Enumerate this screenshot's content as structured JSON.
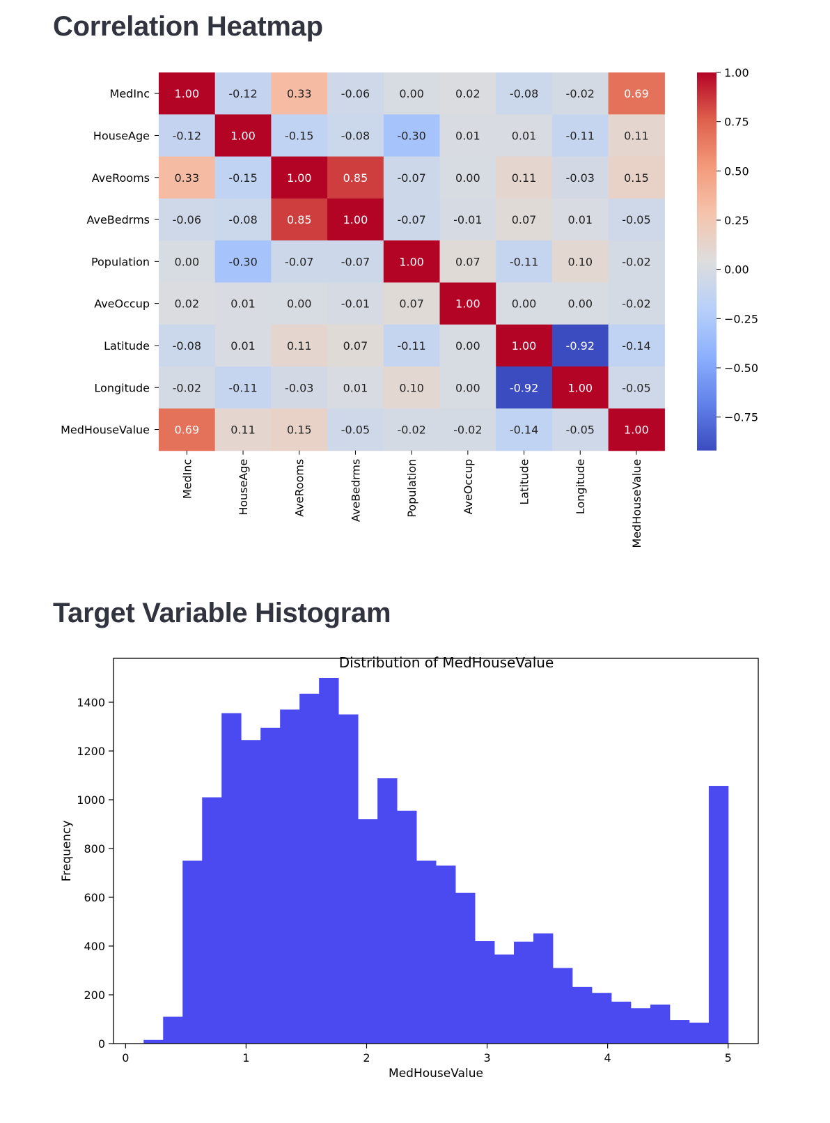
{
  "sections": {
    "heatmap_heading": "Correlation Heatmap",
    "histogram_heading": "Target Variable Histogram"
  },
  "chart_data": [
    {
      "type": "heatmap",
      "colormap": "coolwarm",
      "value_range": [
        -0.92,
        1.0
      ],
      "annotation_format": "2 decimals",
      "labels": [
        "MedInc",
        "HouseAge",
        "AveRooms",
        "AveBedrms",
        "Population",
        "AveOccup",
        "Latitude",
        "Longitude",
        "MedHouseValue"
      ],
      "matrix": [
        [
          1.0,
          -0.12,
          0.33,
          -0.06,
          0.0,
          0.02,
          -0.08,
          -0.02,
          0.69
        ],
        [
          -0.12,
          1.0,
          -0.15,
          -0.08,
          -0.3,
          0.01,
          0.01,
          -0.11,
          0.11
        ],
        [
          0.33,
          -0.15,
          1.0,
          0.85,
          -0.07,
          -0.0,
          0.11,
          -0.03,
          0.15
        ],
        [
          -0.06,
          -0.08,
          0.85,
          1.0,
          -0.07,
          -0.01,
          0.07,
          0.01,
          -0.05
        ],
        [
          0.0,
          -0.3,
          -0.07,
          -0.07,
          1.0,
          0.07,
          -0.11,
          0.1,
          -0.02
        ],
        [
          0.02,
          0.01,
          -0.0,
          -0.01,
          0.07,
          1.0,
          0.0,
          0.0,
          -0.02
        ],
        [
          -0.08,
          0.01,
          0.11,
          0.07,
          -0.11,
          0.0,
          1.0,
          -0.92,
          -0.14
        ],
        [
          -0.02,
          -0.11,
          -0.03,
          0.01,
          0.1,
          0.0,
          -0.92,
          1.0,
          -0.05
        ],
        [
          0.69,
          0.11,
          0.15,
          -0.05,
          -0.02,
          -0.02,
          -0.14,
          -0.05,
          1.0
        ]
      ],
      "colorbar_ticks": [
        "1.00",
        "0.75",
        "0.50",
        "0.25",
        "0.00",
        "−0.25",
        "−0.50",
        "−0.75"
      ],
      "colorbar_tick_values": [
        1.0,
        0.75,
        0.5,
        0.25,
        0.0,
        -0.25,
        -0.5,
        -0.75
      ]
    },
    {
      "type": "bar",
      "subtype": "histogram",
      "title": "Distribution of MedHouseValue",
      "xlabel": "MedHouseValue",
      "ylabel": "Frequency",
      "xlim": [
        -0.1,
        5.25
      ],
      "ylim": [
        0,
        1580
      ],
      "bin_start": 0.15,
      "bin_width": 0.1617,
      "values": [
        15,
        110,
        750,
        1010,
        1355,
        1245,
        1295,
        1370,
        1435,
        1500,
        1350,
        920,
        1088,
        955,
        750,
        730,
        618,
        420,
        365,
        418,
        452,
        310,
        232,
        208,
        172,
        145,
        160,
        97,
        86,
        1057
      ],
      "bar_color": "#4a4af0",
      "xticks": [
        0,
        1,
        2,
        3,
        4,
        5
      ],
      "xtick_labels": [
        "0",
        "1",
        "2",
        "3",
        "4",
        "5"
      ],
      "yticks": [
        0,
        200,
        400,
        600,
        800,
        1000,
        1200,
        1400
      ],
      "ytick_labels": [
        "0",
        "200",
        "400",
        "600",
        "800",
        "1000",
        "1200",
        "1400"
      ]
    }
  ]
}
